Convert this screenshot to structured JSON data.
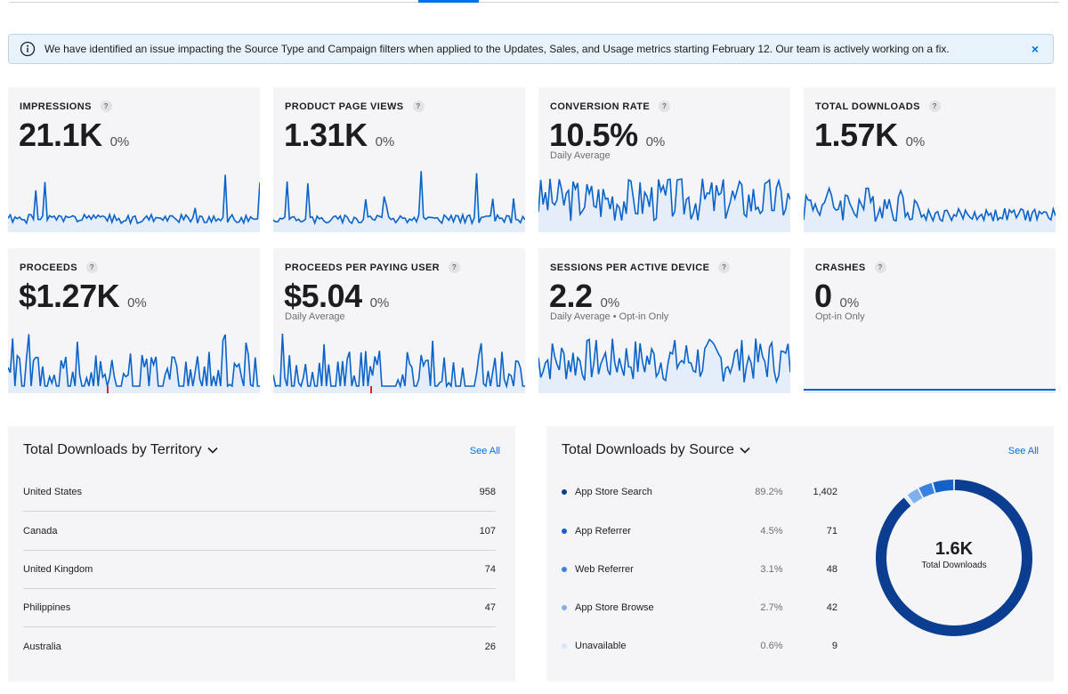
{
  "banner": {
    "message": "We have identified an issue impacting the Source Type and Campaign filters when applied to the Updates, Sales, and Usage metrics starting February 12. Our team is actively working on a fix.",
    "close_label": "×"
  },
  "metrics": [
    {
      "label": "IMPRESSIONS",
      "value": "21.1K",
      "change": "0%",
      "sub": ""
    },
    {
      "label": "PRODUCT PAGE VIEWS",
      "value": "1.31K",
      "change": "0%",
      "sub": ""
    },
    {
      "label": "CONVERSION RATE",
      "value": "10.5%",
      "change": "0%",
      "sub": "Daily Average"
    },
    {
      "label": "TOTAL DOWNLOADS",
      "value": "1.57K",
      "change": "0%",
      "sub": ""
    },
    {
      "label": "PROCEEDS",
      "value": "$1.27K",
      "change": "0%",
      "sub": ""
    },
    {
      "label": "PROCEEDS PER PAYING USER",
      "value": "$5.04",
      "change": "0%",
      "sub": "Daily Average"
    },
    {
      "label": "SESSIONS PER ACTIVE DEVICE",
      "value": "2.2",
      "change": "0%",
      "sub": "Daily Average • Opt-in Only"
    },
    {
      "label": "CRASHES",
      "value": "0",
      "change": "0%",
      "sub": "Opt-in Only"
    }
  ],
  "help_label": "?",
  "territory": {
    "title": "Total Downloads by Territory",
    "see_all": "See All",
    "rows": [
      {
        "name": "United States",
        "count": "958"
      },
      {
        "name": "Canada",
        "count": "107"
      },
      {
        "name": "United Kingdom",
        "count": "74"
      },
      {
        "name": "Philippines",
        "count": "47"
      },
      {
        "name": "Australia",
        "count": "26"
      }
    ]
  },
  "source": {
    "title": "Total Downloads by Source",
    "see_all": "See All",
    "rows": [
      {
        "name": "App Store Search",
        "pct": "89.2%",
        "count": "1,402",
        "color": "#0b3d91",
        "share": 89.2
      },
      {
        "name": "App Referrer",
        "pct": "4.5%",
        "count": "71",
        "color": "#1660c9",
        "share": 4.5
      },
      {
        "name": "Web Referrer",
        "pct": "3.1%",
        "count": "48",
        "color": "#3b82e0",
        "share": 3.1
      },
      {
        "name": "App Store Browse",
        "pct": "2.7%",
        "count": "42",
        "color": "#7fb0ee",
        "share": 2.7
      },
      {
        "name": "Unavailable",
        "pct": "0.6%",
        "count": "9",
        "color": "#d6e6fa",
        "share": 0.6
      }
    ],
    "donut_value": "1.6K",
    "donut_label": "Total Downloads"
  },
  "colors": {
    "accent": "#0071e3",
    "spark": "#0a63c9",
    "spark_neg": "#e0242b"
  }
}
